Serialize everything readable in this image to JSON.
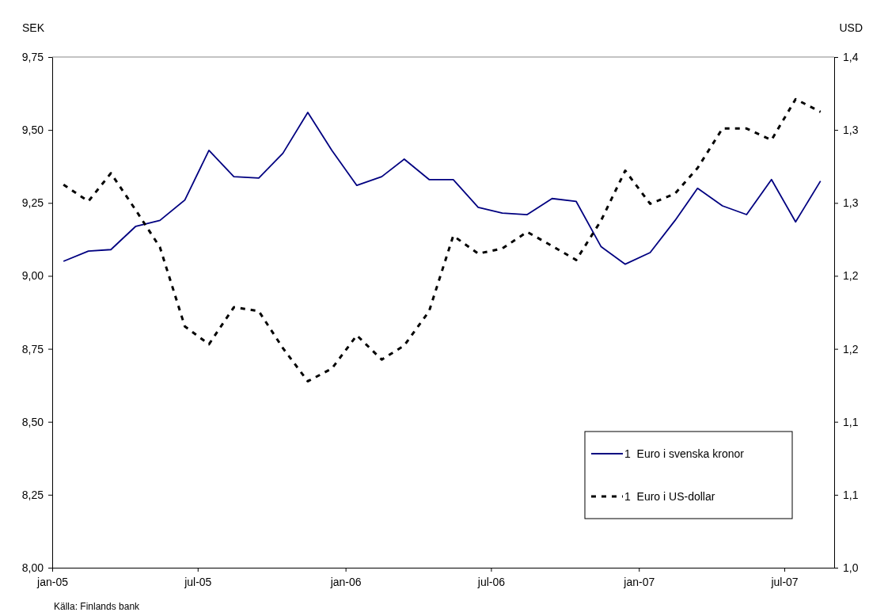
{
  "chart_data": {
    "type": "line",
    "ylabel": "SEK",
    "y2label": "USD",
    "x": [
      "2005-01-15",
      "2005-02-15",
      "2005-03-15",
      "2005-04-15",
      "2005-05-15",
      "2005-06-15",
      "2005-07-15",
      "2005-08-15",
      "2005-09-15",
      "2005-10-15",
      "2005-11-15",
      "2005-12-15",
      "2006-01-15",
      "2006-02-15",
      "2006-03-15",
      "2006-04-15",
      "2006-05-15",
      "2006-06-15",
      "2006-07-15",
      "2006-08-15",
      "2006-09-15",
      "2006-10-15",
      "2006-11-15",
      "2006-12-15",
      "2007-01-15",
      "2007-02-15",
      "2007-03-15",
      "2007-04-15",
      "2007-05-15",
      "2007-06-15",
      "2007-07-15",
      "2007-08-15"
    ],
    "xlim": [
      "2005-01",
      "2007-09"
    ],
    "xticks": [
      {
        "value": "2005-01",
        "label": "jan-05"
      },
      {
        "value": "2005-07",
        "label": "jul-05"
      },
      {
        "value": "2006-01",
        "label": "jan-06"
      },
      {
        "value": "2006-07",
        "label": "jul-06"
      },
      {
        "value": "2007-01",
        "label": "jan-07"
      },
      {
        "value": "2007-07",
        "label": "jul-07"
      }
    ],
    "ylim": [
      8.0,
      9.75
    ],
    "yticks": [
      {
        "value": 8.0,
        "label": "8,00"
      },
      {
        "value": 8.25,
        "label": "8,25"
      },
      {
        "value": 8.5,
        "label": "8,50"
      },
      {
        "value": 8.75,
        "label": "8,75"
      },
      {
        "value": 9.0,
        "label": "9,00"
      },
      {
        "value": 9.25,
        "label": "9,25"
      },
      {
        "value": 9.5,
        "label": "9,50"
      },
      {
        "value": 9.75,
        "label": "9,75"
      }
    ],
    "y2lim": [
      1.0,
      1.4
    ],
    "y2ticks": [
      {
        "value": 1.0,
        "label": "1,0"
      },
      {
        "value": 1.0571,
        "label": "1,1"
      },
      {
        "value": 1.1143,
        "label": "1,1"
      },
      {
        "value": 1.1714,
        "label": "1,2"
      },
      {
        "value": 1.2286,
        "label": "1,2"
      },
      {
        "value": 1.2857,
        "label": "1,3"
      },
      {
        "value": 1.3429,
        "label": "1,3"
      },
      {
        "value": 1.4,
        "label": "1,4"
      }
    ],
    "series": [
      {
        "name": "1  Euro i svenska kronor",
        "color": "#000080",
        "line_style": "solid",
        "values": [
          9.05,
          9.085,
          9.09,
          9.17,
          9.19,
          9.26,
          9.43,
          9.34,
          9.335,
          9.42,
          9.56,
          9.43,
          9.31,
          9.34,
          9.4,
          9.33,
          9.33,
          9.235,
          9.215,
          9.21,
          9.265,
          9.255,
          9.1,
          9.04,
          9.08,
          9.19,
          9.3,
          9.24,
          9.21,
          9.33,
          9.185,
          9.325
        ]
      },
      {
        "name": "1  Euro i US-dollar",
        "color": "#000000",
        "line_style": "dashed",
        "axis": "y2",
        "values": [
          1.3,
          1.287,
          1.309,
          1.28,
          1.251,
          1.189,
          1.175,
          1.204,
          1.201,
          1.172,
          1.146,
          1.156,
          1.182,
          1.163,
          1.174,
          1.201,
          1.26,
          1.246,
          1.25,
          1.263,
          1.252,
          1.241,
          1.272,
          1.311,
          1.285,
          1.293,
          1.313,
          1.344,
          1.344,
          1.335,
          1.367,
          1.357
        ]
      }
    ],
    "legend": "bottom right",
    "grid": false,
    "marker": "none",
    "annotations": [
      "Källa: Finlands bank"
    ]
  }
}
